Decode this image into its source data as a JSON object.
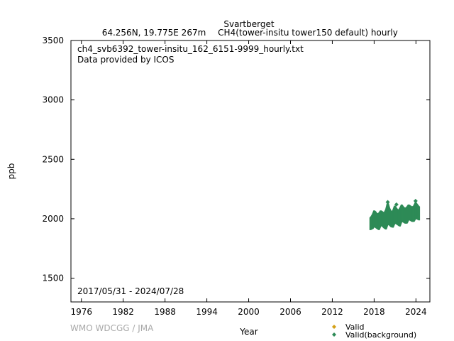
{
  "chart_data": {
    "type": "scatter",
    "title": "Svartberget",
    "subtitle_location": "64.256N, 19.775E 267m",
    "subtitle_series": "CH4(tower-insitu tower150 default) hourly",
    "file_label": "ch4_svb6392_tower-insitu_162_6151-9999_hourly.txt",
    "provider_label": "Data provided by ICOS",
    "date_range_label": "2017/05/31 - 2024/07/28",
    "xlabel": "Year",
    "ylabel": "ppb",
    "xlim": [
      1974.5,
      2026.0
    ],
    "ylim": [
      1300,
      3500
    ],
    "x_ticks": [
      1976,
      1982,
      1988,
      1994,
      2000,
      2006,
      2012,
      2018,
      2024
    ],
    "y_ticks": [
      1500,
      2000,
      2500,
      3000,
      3500
    ],
    "grid": false,
    "legend_position": "bottom-right",
    "watermark": "WMO WDCGG / JMA",
    "series": [
      {
        "name": "Valid",
        "color": "#d4a017",
        "marker": "diamond",
        "x": [],
        "y": []
      },
      {
        "name": "Valid(background)",
        "color": "#2e8b57",
        "marker": "diamond",
        "x": [
          2017.45,
          2017.6,
          2017.8,
          2018.0,
          2018.2,
          2018.45,
          2018.7,
          2018.95,
          2019.2,
          2019.45,
          2019.7,
          2019.95,
          2020.2,
          2020.45,
          2020.7,
          2020.95,
          2021.2,
          2021.45,
          2021.7,
          2021.95,
          2022.2,
          2022.45,
          2022.7,
          2022.95,
          2023.2,
          2023.45,
          2023.7,
          2023.95,
          2024.2,
          2024.5
        ],
        "y_low": [
          1905,
          1910,
          1915,
          1935,
          1925,
          1915,
          1905,
          1940,
          1935,
          1920,
          1910,
          1950,
          1945,
          1930,
          1925,
          1960,
          1955,
          1945,
          1935,
          1975,
          1970,
          1960,
          1960,
          1990,
          1985,
          1975,
          1975,
          2000,
          1995,
          1985
        ],
        "y_high": [
          2010,
          2020,
          2040,
          2070,
          2060,
          2040,
          2050,
          2070,
          2060,
          2050,
          2080,
          2140,
          2090,
          2060,
          2070,
          2110,
          2090,
          2070,
          2090,
          2120,
          2100,
          2090,
          2100,
          2120,
          2110,
          2100,
          2110,
          2140,
          2120,
          2100
        ]
      }
    ]
  }
}
